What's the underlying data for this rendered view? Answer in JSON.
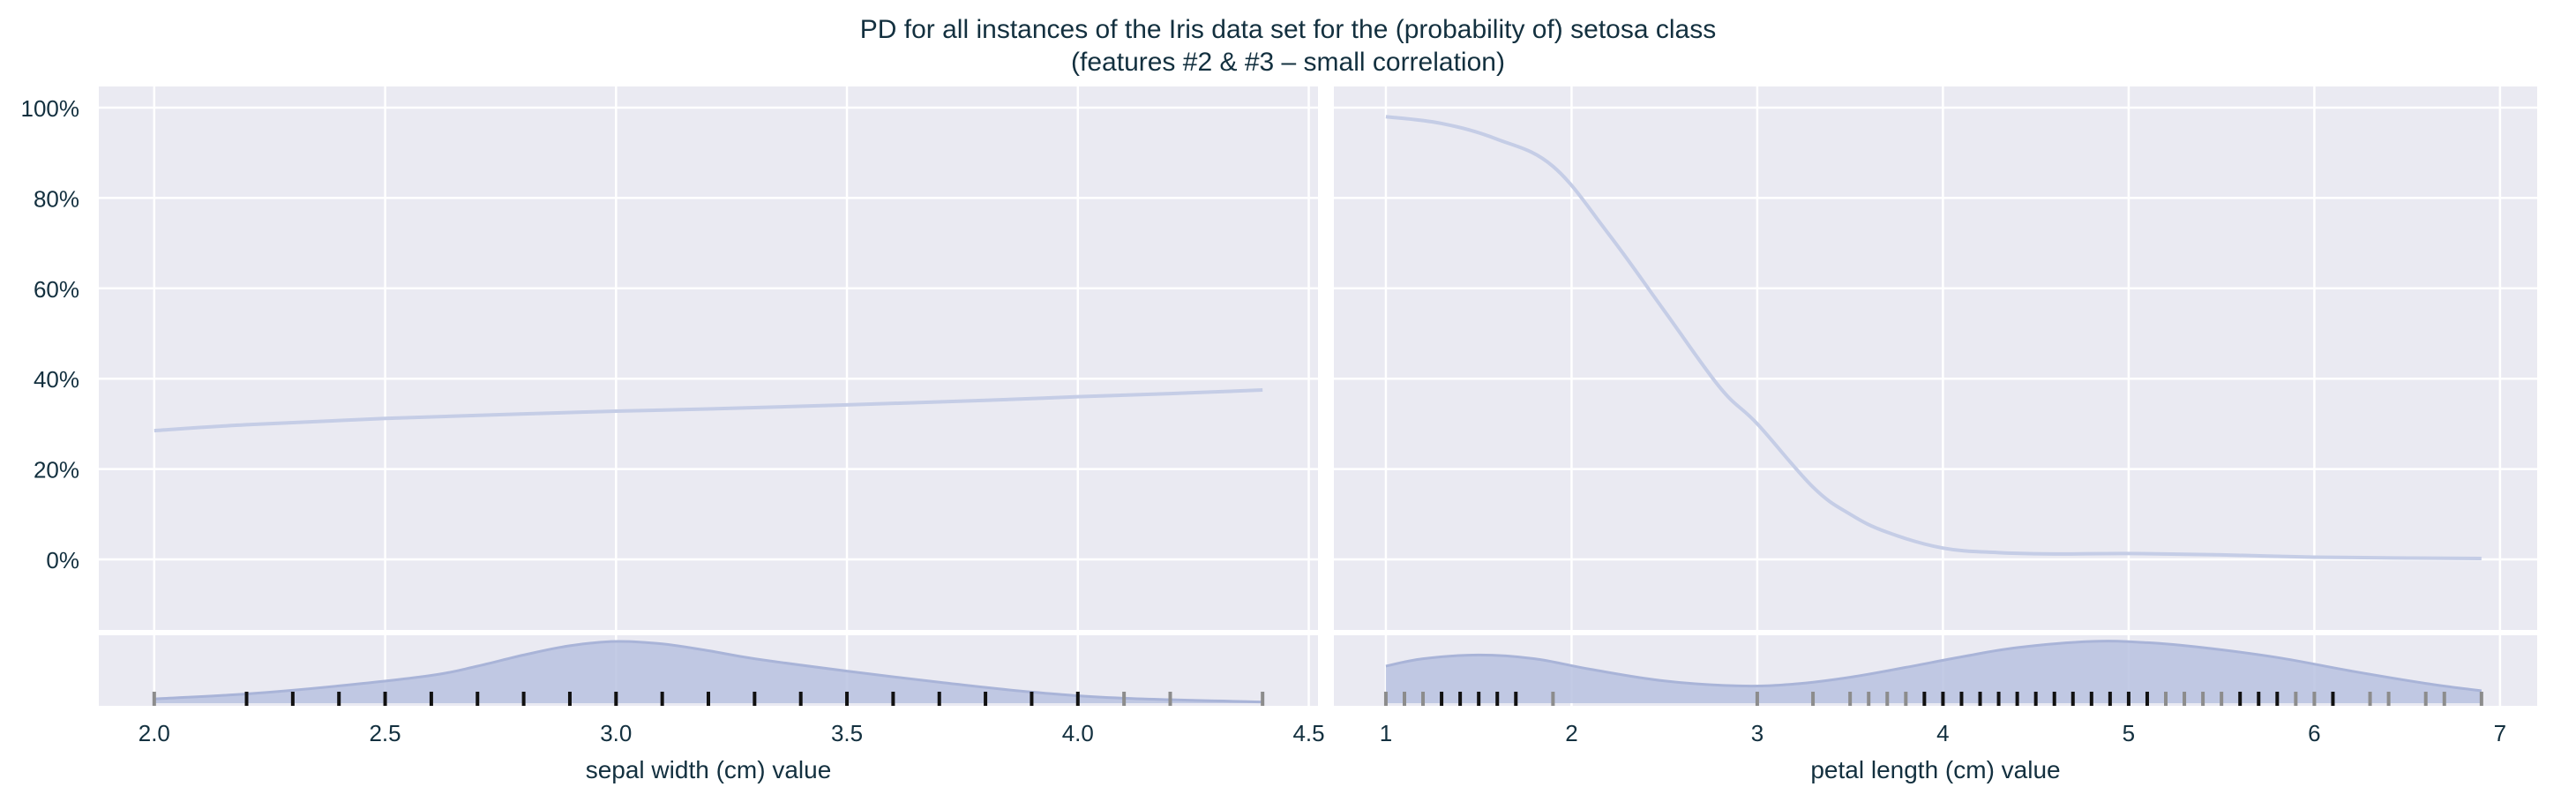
{
  "title_line1": "PD for all instances of the Iris data set for the (probability of) setosa class",
  "title_line2": "(features #2 & #3 – small correlation)",
  "colors": {
    "background": "#eaeaf2",
    "grid": "#ffffff",
    "pd_line": "#c5cde6",
    "density_fill": "#b9c2e0",
    "density_line": "#a9b4d8",
    "rug_dark": "#111111",
    "rug_light": "#8c8c8c",
    "text": "#13303f"
  },
  "y_ticks": [
    "100%",
    "80%",
    "60%",
    "40%",
    "20%",
    "0%"
  ],
  "chart_data": [
    {
      "type": "line",
      "xlabel": "sepal width (cm) value",
      "ylabel": "",
      "x_ticks": [
        2.0,
        2.5,
        3.0,
        3.5,
        4.0,
        4.5
      ],
      "x_tick_labels": [
        "2.0",
        "2.5",
        "3.0",
        "3.5",
        "4.0",
        "4.5"
      ],
      "xlim": [
        1.88,
        4.52
      ],
      "ylim": [
        0,
        1
      ],
      "pd_line": {
        "x": [
          2.0,
          2.2,
          2.5,
          2.8,
          3.0,
          3.2,
          3.5,
          3.8,
          4.0,
          4.2,
          4.4
        ],
        "y": [
          0.285,
          0.298,
          0.312,
          0.322,
          0.328,
          0.333,
          0.342,
          0.352,
          0.36,
          0.367,
          0.375
        ]
      },
      "density": {
        "x": [
          2.0,
          2.2,
          2.4,
          2.6,
          2.7,
          2.8,
          2.9,
          3.0,
          3.1,
          3.2,
          3.3,
          3.5,
          3.7,
          3.9,
          4.1,
          4.4
        ],
        "y": [
          0.07,
          0.15,
          0.28,
          0.45,
          0.6,
          0.78,
          0.93,
          1.0,
          0.96,
          0.85,
          0.72,
          0.52,
          0.34,
          0.18,
          0.08,
          0.02
        ]
      },
      "rug": [
        {
          "x": 2.0,
          "dense": false
        },
        {
          "x": 2.2,
          "dense": true
        },
        {
          "x": 2.3,
          "dense": true
        },
        {
          "x": 2.4,
          "dense": true
        },
        {
          "x": 2.5,
          "dense": true
        },
        {
          "x": 2.6,
          "dense": true
        },
        {
          "x": 2.7,
          "dense": true
        },
        {
          "x": 2.8,
          "dense": true
        },
        {
          "x": 2.9,
          "dense": true
        },
        {
          "x": 3.0,
          "dense": true
        },
        {
          "x": 3.1,
          "dense": true
        },
        {
          "x": 3.2,
          "dense": true
        },
        {
          "x": 3.3,
          "dense": true
        },
        {
          "x": 3.4,
          "dense": true
        },
        {
          "x": 3.5,
          "dense": true
        },
        {
          "x": 3.6,
          "dense": true
        },
        {
          "x": 3.7,
          "dense": true
        },
        {
          "x": 3.8,
          "dense": true
        },
        {
          "x": 3.9,
          "dense": true
        },
        {
          "x": 4.0,
          "dense": true
        },
        {
          "x": 4.1,
          "dense": false
        },
        {
          "x": 4.2,
          "dense": false
        },
        {
          "x": 4.4,
          "dense": false
        }
      ]
    },
    {
      "type": "line",
      "xlabel": "petal length (cm) value",
      "ylabel": "",
      "x_ticks": [
        1,
        2,
        3,
        4,
        5,
        6,
        7
      ],
      "x_tick_labels": [
        "1",
        "2",
        "3",
        "4",
        "5",
        "6",
        "7"
      ],
      "xlim": [
        0.72,
        7.2
      ],
      "ylim": [
        0,
        1
      ],
      "pd_line": {
        "x": [
          1.0,
          1.3,
          1.6,
          1.9,
          2.2,
          2.5,
          2.8,
          3.0,
          3.3,
          3.5,
          3.7,
          4.0,
          4.3,
          4.6,
          5.0,
          5.5,
          6.0,
          6.5,
          6.9
        ],
        "y": [
          0.98,
          0.965,
          0.93,
          0.87,
          0.72,
          0.55,
          0.38,
          0.3,
          0.16,
          0.1,
          0.06,
          0.025,
          0.015,
          0.012,
          0.013,
          0.01,
          0.005,
          0.003,
          0.002
        ]
      },
      "density": {
        "x": [
          1.0,
          1.2,
          1.5,
          1.8,
          2.1,
          2.5,
          2.9,
          3.2,
          3.5,
          3.8,
          4.1,
          4.4,
          4.8,
          5.1,
          5.4,
          5.8,
          6.2,
          6.6,
          6.9
        ],
        "y": [
          0.6,
          0.72,
          0.78,
          0.72,
          0.55,
          0.36,
          0.28,
          0.31,
          0.42,
          0.58,
          0.75,
          0.9,
          1.0,
          0.98,
          0.9,
          0.74,
          0.52,
          0.32,
          0.2
        ]
      },
      "rug": [
        {
          "x": 1.0,
          "dense": false
        },
        {
          "x": 1.1,
          "dense": false
        },
        {
          "x": 1.2,
          "dense": false
        },
        {
          "x": 1.3,
          "dense": true
        },
        {
          "x": 1.4,
          "dense": true
        },
        {
          "x": 1.5,
          "dense": true
        },
        {
          "x": 1.6,
          "dense": true
        },
        {
          "x": 1.7,
          "dense": true
        },
        {
          "x": 1.9,
          "dense": false
        },
        {
          "x": 3.0,
          "dense": false
        },
        {
          "x": 3.3,
          "dense": false
        },
        {
          "x": 3.5,
          "dense": false
        },
        {
          "x": 3.6,
          "dense": false
        },
        {
          "x": 3.7,
          "dense": false
        },
        {
          "x": 3.8,
          "dense": false
        },
        {
          "x": 3.9,
          "dense": true
        },
        {
          "x": 4.0,
          "dense": true
        },
        {
          "x": 4.1,
          "dense": true
        },
        {
          "x": 4.2,
          "dense": true
        },
        {
          "x": 4.3,
          "dense": true
        },
        {
          "x": 4.4,
          "dense": true
        },
        {
          "x": 4.5,
          "dense": true
        },
        {
          "x": 4.6,
          "dense": true
        },
        {
          "x": 4.7,
          "dense": true
        },
        {
          "x": 4.8,
          "dense": true
        },
        {
          "x": 4.9,
          "dense": true
        },
        {
          "x": 5.0,
          "dense": true
        },
        {
          "x": 5.1,
          "dense": true
        },
        {
          "x": 5.2,
          "dense": false
        },
        {
          "x": 5.3,
          "dense": false
        },
        {
          "x": 5.4,
          "dense": false
        },
        {
          "x": 5.5,
          "dense": false
        },
        {
          "x": 5.6,
          "dense": true
        },
        {
          "x": 5.7,
          "dense": true
        },
        {
          "x": 5.8,
          "dense": true
        },
        {
          "x": 5.9,
          "dense": false
        },
        {
          "x": 6.0,
          "dense": false
        },
        {
          "x": 6.1,
          "dense": true
        },
        {
          "x": 6.3,
          "dense": false
        },
        {
          "x": 6.4,
          "dense": false
        },
        {
          "x": 6.6,
          "dense": false
        },
        {
          "x": 6.7,
          "dense": false
        },
        {
          "x": 6.9,
          "dense": false
        }
      ]
    }
  ]
}
